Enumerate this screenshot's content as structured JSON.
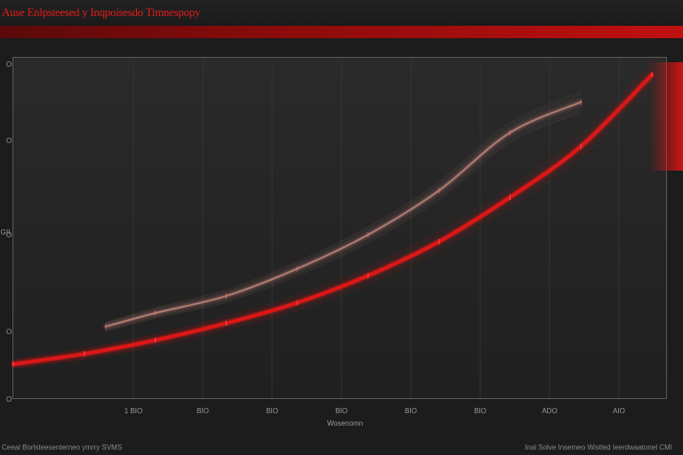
{
  "header": {
    "title": "Ause Enlpsteesed y Inqpoisesdo Timnespopy"
  },
  "footer": {
    "left_text": "Ceeal Borlsteesenterneo ymrry SVMS",
    "right_text": "Inal Solve Insemeo Wistled Ieerdwaatonel CMI"
  },
  "chart_data": {
    "type": "line",
    "title": "",
    "xlabel": "Wosenomn",
    "ylabel": "GII",
    "x_ticks": [
      "1 BIO",
      "BIO",
      "BIO",
      "BIO",
      "BIO",
      "BIO",
      "ADO",
      "AIO"
    ],
    "y_ticks": [
      "O",
      "O",
      "O",
      "O"
    ],
    "grid": true,
    "legend": "none",
    "series": [
      {
        "color": "#e01515",
        "x": [
          0,
          1,
          2,
          3,
          4,
          5,
          6,
          7,
          8,
          9
        ],
        "values": [
          0.1,
          0.13,
          0.17,
          0.22,
          0.28,
          0.36,
          0.46,
          0.59,
          0.74,
          0.95
        ]
      },
      {
        "color": "#c88a80",
        "x": [
          1.3,
          2,
          3,
          4,
          5,
          6,
          7,
          8
        ],
        "values": [
          0.21,
          0.25,
          0.3,
          0.38,
          0.48,
          0.61,
          0.78,
          0.87
        ]
      }
    ],
    "xlim": [
      0,
      9.2
    ],
    "ylim": [
      0,
      1
    ]
  }
}
